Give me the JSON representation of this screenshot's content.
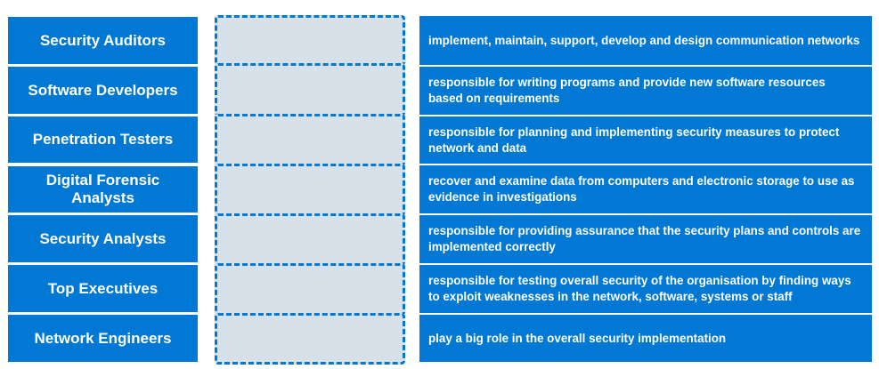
{
  "roles": [
    {
      "label": "Security Auditors"
    },
    {
      "label": "Software Developers"
    },
    {
      "label": "Penetration Testers"
    },
    {
      "label": "Digital Forensic Analysts"
    },
    {
      "label": "Security Analysts"
    },
    {
      "label": "Top Executives"
    },
    {
      "label": "Network Engineers"
    }
  ],
  "descriptions": [
    {
      "text": "implement, maintain, support, develop and design communication networks"
    },
    {
      "text": "responsible for writing programs and provide new software resources based on requirements"
    },
    {
      "text": "responsible for planning and implementing security measures to protect network and data"
    },
    {
      "text": "recover and examine data from computers and electronic storage to use as evidence in investigations"
    },
    {
      "text": "responsible for providing assurance that the security plans and controls are implemented correctly"
    },
    {
      "text": "responsible for testing overall security of the organisation by finding ways to exploit weaknesses in the network, software, systems or staff"
    },
    {
      "text": "play a big role in the overall security implementation"
    }
  ],
  "colors": {
    "item_background": "#0078d4",
    "item_text": "#ffffff",
    "slot_background": "#d6e1ea",
    "slot_border": "#0078d4"
  }
}
